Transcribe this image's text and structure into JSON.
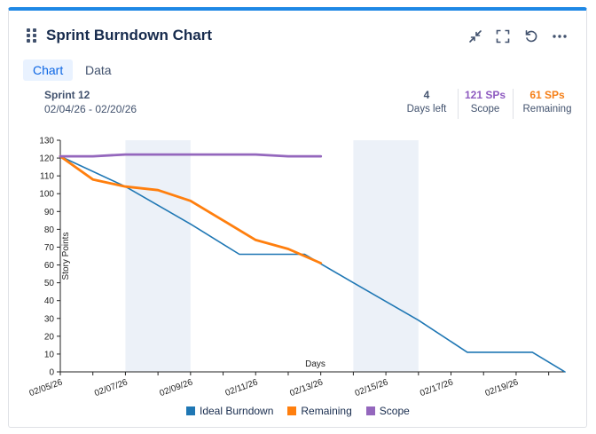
{
  "widget": {
    "title": "Sprint Burndown Chart"
  },
  "header_actions": [
    {
      "name": "collapse-icon",
      "label": "collapse"
    },
    {
      "name": "fullscreen-icon",
      "label": "fullscreen"
    },
    {
      "name": "refresh-icon",
      "label": "refresh"
    },
    {
      "name": "more-icon",
      "label": "more"
    }
  ],
  "tabs": [
    {
      "label": "Chart",
      "active": true
    },
    {
      "label": "Data",
      "active": false
    }
  ],
  "sprint": {
    "name": "Sprint 12",
    "dates": "02/04/26 - 02/20/26"
  },
  "stats": {
    "days_left": {
      "value": "4",
      "label": "Days left",
      "color": "#42526e"
    },
    "scope": {
      "value": "121 SPs",
      "label": "Scope",
      "color": "#8e5bc0"
    },
    "remaining": {
      "value": "61 SPs",
      "label": "Remaining",
      "color": "#f57f17"
    }
  },
  "chart_data": {
    "type": "line",
    "title": "",
    "xlabel": "Days",
    "ylabel": "Story Points",
    "ylim": [
      0,
      130
    ],
    "yticks": [
      0,
      10,
      20,
      30,
      40,
      50,
      60,
      70,
      80,
      90,
      100,
      110,
      120,
      130
    ],
    "x_range": [
      0,
      15.5
    ],
    "xtick_labels": [
      {
        "x": 0,
        "label": "02/05/26"
      },
      {
        "x": 2,
        "label": "02/07/26"
      },
      {
        "x": 4,
        "label": "02/09/26"
      },
      {
        "x": 6,
        "label": "02/11/26"
      },
      {
        "x": 8,
        "label": "02/13/26"
      },
      {
        "x": 10,
        "label": "02/15/26"
      },
      {
        "x": 12,
        "label": "02/17/26"
      },
      {
        "x": 14,
        "label": "02/19/26"
      }
    ],
    "weekend_bands": [
      [
        2,
        4
      ],
      [
        9,
        11
      ]
    ],
    "series": [
      {
        "name": "Ideal Burndown",
        "color": "#1f77b4",
        "x": [
          0,
          2,
          4,
          5.5,
          7.5,
          9,
          11,
          12.5,
          14.5,
          15.5
        ],
        "values": [
          121,
          104,
          83,
          66,
          66,
          50,
          29,
          11,
          11,
          0
        ]
      },
      {
        "name": "Remaining",
        "color": "#ff7f0e",
        "x": [
          0,
          1,
          2,
          3,
          4,
          5,
          6,
          7,
          8
        ],
        "values": [
          121,
          108,
          104,
          102,
          96,
          85,
          74,
          69,
          61
        ]
      },
      {
        "name": "Scope",
        "color": "#9467bd",
        "x": [
          0,
          1,
          2,
          3,
          4,
          5,
          6,
          7,
          8
        ],
        "values": [
          121,
          121,
          122,
          122,
          122,
          122,
          122,
          121,
          121
        ]
      }
    ]
  }
}
